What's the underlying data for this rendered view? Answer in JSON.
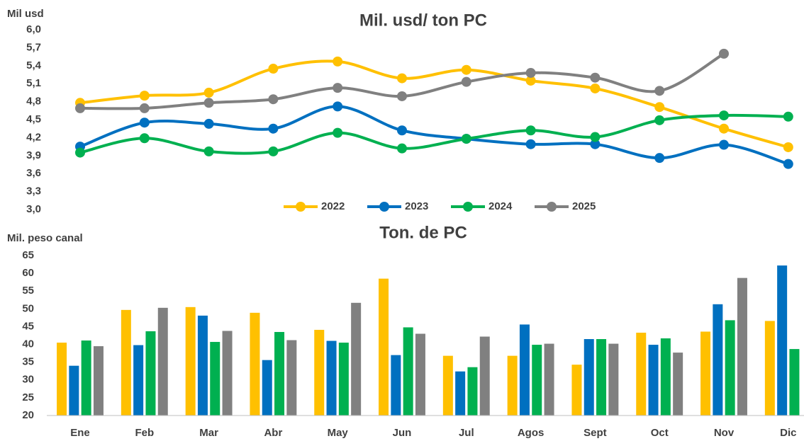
{
  "chart_data": [
    {
      "type": "line",
      "title": "Mil. usd/ ton PC",
      "y_label": "Mil usd",
      "ylim": [
        3.0,
        6.0
      ],
      "yticks": [
        {
          "value": 3.0,
          "label": "3,0"
        },
        {
          "value": 3.3,
          "label": "3,3"
        },
        {
          "value": 3.6,
          "label": "3,6"
        },
        {
          "value": 3.9,
          "label": "3,9"
        },
        {
          "value": 4.2,
          "label": "4,2"
        },
        {
          "value": 4.5,
          "label": "4,5"
        },
        {
          "value": 4.8,
          "label": "4,8"
        },
        {
          "value": 5.1,
          "label": "5,1"
        },
        {
          "value": 5.4,
          "label": "5,4"
        },
        {
          "value": 5.7,
          "label": "5,7"
        },
        {
          "value": 6.0,
          "label": "6,0"
        }
      ],
      "series": [
        {
          "name": "2022",
          "color": "#FFC000",
          "values": [
            4.78,
            4.9,
            4.95,
            5.35,
            5.47,
            5.19,
            5.33,
            5.15,
            5.02,
            4.71,
            4.35,
            4.04
          ]
        },
        {
          "name": "2023",
          "color": "#0070C0",
          "values": [
            4.05,
            4.45,
            4.43,
            4.35,
            4.72,
            4.32,
            4.18,
            4.09,
            4.09,
            3.86,
            4.08,
            3.76
          ]
        },
        {
          "name": "2024",
          "color": "#00B050",
          "values": [
            3.95,
            4.19,
            3.97,
            3.97,
            4.28,
            4.02,
            4.18,
            4.32,
            4.21,
            4.49,
            4.57,
            4.55
          ]
        },
        {
          "name": "2025",
          "color": "#808080",
          "values": [
            4.69,
            4.69,
            4.78,
            4.84,
            5.03,
            4.89,
            5.13,
            5.28,
            5.2,
            4.98,
            5.6,
            null
          ]
        }
      ]
    },
    {
      "type": "bar",
      "title": "Ton. de PC",
      "y_label": "Mil. peso canal",
      "categories": [
        "Ene",
        "Feb",
        "Mar",
        "Abr",
        "May",
        "Jun",
        "Jul",
        "Agos",
        "Sept",
        "Oct",
        "Nov",
        "Dic"
      ],
      "ylim": [
        20,
        65
      ],
      "yticks": [
        20,
        25,
        30,
        35,
        40,
        45,
        50,
        55,
        60,
        65
      ],
      "series": [
        {
          "color": "#FFC000",
          "values": [
            40.5,
            49.7,
            50.5,
            48.9,
            44.1,
            58.5,
            36.8,
            36.8,
            34.3,
            43.3,
            43.6,
            46.6
          ]
        },
        {
          "color": "#0070C0",
          "values": [
            34.0,
            39.8,
            48.1,
            35.6,
            41.0,
            37.0,
            32.4,
            45.6,
            41.5,
            39.9,
            51.3,
            62.2
          ]
        },
        {
          "color": "#00B050",
          "values": [
            41.1,
            43.7,
            40.7,
            43.5,
            40.5,
            44.8,
            33.6,
            39.9,
            41.5,
            41.7,
            46.8,
            38.7
          ]
        },
        {
          "color": "#808080",
          "values": [
            39.5,
            50.3,
            43.8,
            41.2,
            51.7,
            43.0,
            42.2,
            40.2,
            40.2,
            37.7,
            58.7,
            null
          ]
        }
      ]
    }
  ]
}
